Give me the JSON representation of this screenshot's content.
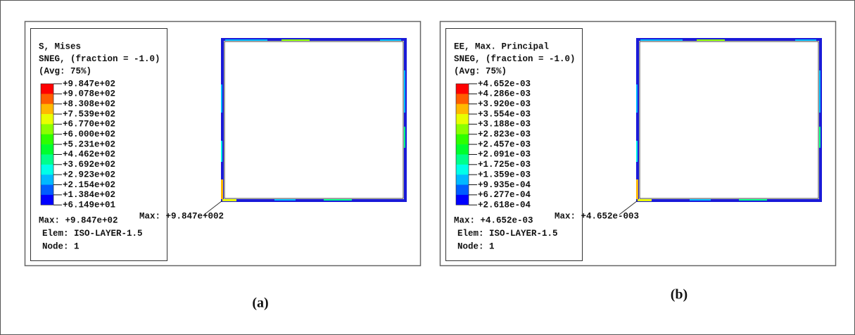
{
  "panels": [
    {
      "legend_title": [
        "S, Mises",
        "SNEG, (fraction = -1.0)",
        "(Avg: 75%)"
      ],
      "legend_values": [
        "+9.847e+02",
        "+9.078e+02",
        "+8.308e+02",
        "+7.539e+02",
        "+6.770e+02",
        "+6.000e+02",
        "+5.231e+02",
        "+4.462e+02",
        "+3.692e+02",
        "+2.923e+02",
        "+2.154e+02",
        "+1.384e+02",
        "+6.149e+01"
      ],
      "max_info": [
        "Max: +9.847e+02",
        "Elem: ISO-LAYER-1.5",
        "Node: 1"
      ],
      "max_annotation": "Max: +9.847e+002",
      "caption": "(a)"
    },
    {
      "legend_title": [
        "EE, Max. Principal",
        "SNEG, (fraction = -1.0)",
        "(Avg: 75%)"
      ],
      "legend_values": [
        "+4.652e-03",
        "+4.286e-03",
        "+3.920e-03",
        "+3.554e-03",
        "+3.188e-03",
        "+2.823e-03",
        "+2.457e-03",
        "+2.091e-03",
        "+1.725e-03",
        "+1.359e-03",
        "+9.935e-04",
        "+6.277e-04",
        "+2.618e-04"
      ],
      "max_info": [
        "Max: +4.652e-03",
        "Elem: ISO-LAYER-1.5",
        "Node: 1"
      ],
      "max_annotation": "Max: +4.652e-003",
      "caption": "(b)"
    }
  ]
}
